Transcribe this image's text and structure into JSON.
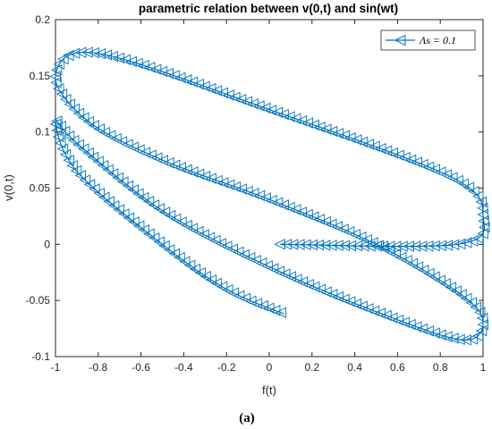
{
  "chart_data": {
    "type": "line",
    "title": "parametric relation between v(0,t) and sin(wt)",
    "xlabel": "f(t)",
    "ylabel": "v(0,t)",
    "xlim": [
      -1,
      1
    ],
    "ylim": [
      -0.1,
      0.2
    ],
    "xticks": [
      "-1",
      "-0.8",
      "-0.6",
      "-0.4",
      "-0.2",
      "0",
      "0.2",
      "0.4",
      "0.6",
      "0.8",
      "1"
    ],
    "yticks": [
      "-0.1",
      "-0.05",
      "0",
      "0.05",
      "0.1",
      "0.15",
      "0.2"
    ],
    "grid": false,
    "legend_position": "top-right",
    "series": [
      {
        "name": "Λs = 0.1",
        "color": "#0072BD",
        "marker": "triangle-left",
        "x": [
          0.05,
          0.88,
          1.0,
          0.85,
          0.0,
          -0.8,
          -1.0,
          -0.85,
          -0.5,
          0.0,
          0.5,
          0.9,
          1.0,
          0.9,
          0.5,
          0.0,
          -0.5,
          -0.9,
          -1.0,
          -0.9,
          -0.5,
          -0.2,
          0.07
        ],
        "y": [
          0.0,
          0.0,
          0.025,
          0.06,
          0.12,
          0.17,
          0.15,
          0.11,
          0.075,
          0.04,
          0.0,
          -0.045,
          -0.07,
          -0.085,
          -0.06,
          -0.02,
          0.03,
          0.09,
          0.11,
          0.065,
          0.0,
          -0.04,
          -0.062
        ]
      }
    ],
    "caption": "(a)"
  }
}
